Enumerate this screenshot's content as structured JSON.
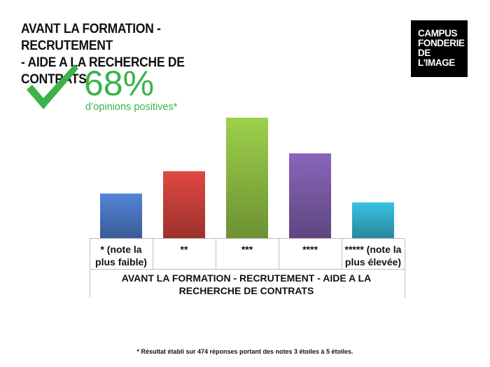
{
  "header": {
    "title_line1": "AVANT LA FORMATION - RECRUTEMENT",
    "title_line2": "- AIDE A LA RECHERCHE DE CONTRATS"
  },
  "logo": {
    "line1": "CAMPUS",
    "line2": "FONDERIE",
    "line3": "DE",
    "line4": "L'IMAGE"
  },
  "highlight": {
    "icon": "check-icon",
    "value": "68%",
    "caption": "d’opinions positives*",
    "color": "#3bb34a"
  },
  "chart_data": {
    "type": "bar",
    "categories": [
      "* (note la plus faible)",
      "**",
      "***",
      "****",
      "***** (note la plus élevée)"
    ],
    "values": [
      10,
      15,
      27,
      19,
      8
    ],
    "colors": [
      "#4a76c1",
      "#c8403a",
      "#8cba42",
      "#7a5aa6",
      "#33adc9"
    ],
    "xlabel": "AVANT LA FORMATION - RECRUTEMENT - AIDE A LA RECHERCHE DE CONTRATS",
    "ylim": [
      0,
      27
    ],
    "grid": false,
    "legend": "none"
  },
  "footnote": "* Résultat établi sur 474 réponses portant des notes 3 étoiles à 5 étoiles."
}
